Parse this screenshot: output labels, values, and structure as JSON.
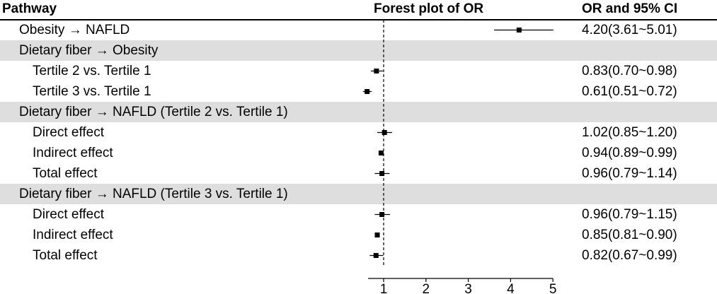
{
  "header": {
    "pathway": "Pathway",
    "forest_title": "Forest plot of OR",
    "ci_title": "OR and 95% CI"
  },
  "chart_data": {
    "type": "forest",
    "title": "Forest plot of OR",
    "xlim": [
      0.5,
      5
    ],
    "reference_line": 1,
    "x_ticks": [
      1,
      2,
      3,
      4,
      5
    ],
    "rows": [
      {
        "label": "Obesity → NAFLD",
        "kind": "estimate",
        "level": 0,
        "or": 4.2,
        "lo": 3.61,
        "hi": 5.01,
        "ci_text": "4.20(3.61~5.01)"
      },
      {
        "label": "Dietary fiber → Obesity",
        "kind": "group",
        "level": 0
      },
      {
        "label": "Tertile 2 vs. Tertile 1",
        "kind": "estimate",
        "level": 1,
        "or": 0.83,
        "lo": 0.7,
        "hi": 0.98,
        "ci_text": "0.83(0.70~0.98)"
      },
      {
        "label": "Tertile 3 vs. Tertile 1",
        "kind": "estimate",
        "level": 1,
        "or": 0.61,
        "lo": 0.51,
        "hi": 0.72,
        "ci_text": "0.61(0.51~0.72)"
      },
      {
        "label": "Dietary fiber → NAFLD (Tertile 2 vs. Tertile 1)",
        "kind": "group",
        "level": 0
      },
      {
        "label": "Direct effect",
        "kind": "estimate",
        "level": 1,
        "or": 1.02,
        "lo": 0.85,
        "hi": 1.2,
        "ci_text": "1.02(0.85~1.20)"
      },
      {
        "label": "Indirect effect",
        "kind": "estimate",
        "level": 1,
        "or": 0.94,
        "lo": 0.89,
        "hi": 0.99,
        "ci_text": "0.94(0.89~0.99)"
      },
      {
        "label": "Total effect",
        "kind": "estimate",
        "level": 1,
        "or": 0.96,
        "lo": 0.79,
        "hi": 1.14,
        "ci_text": "0.96(0.79~1.14)"
      },
      {
        "label": "Dietary fiber → NAFLD (Tertile 3 vs. Tertile 1)",
        "kind": "group",
        "level": 0
      },
      {
        "label": "Direct effect",
        "kind": "estimate",
        "level": 1,
        "or": 0.96,
        "lo": 0.79,
        "hi": 1.15,
        "ci_text": "0.96(0.79~1.15)"
      },
      {
        "label": "Indirect effect",
        "kind": "estimate",
        "level": 1,
        "or": 0.85,
        "lo": 0.81,
        "hi": 0.9,
        "ci_text": "0.85(0.81~0.90)"
      },
      {
        "label": "Total effect",
        "kind": "estimate",
        "level": 1,
        "or": 0.82,
        "lo": 0.67,
        "hi": 0.99,
        "ci_text": "0.82(0.67~0.99)"
      }
    ]
  }
}
